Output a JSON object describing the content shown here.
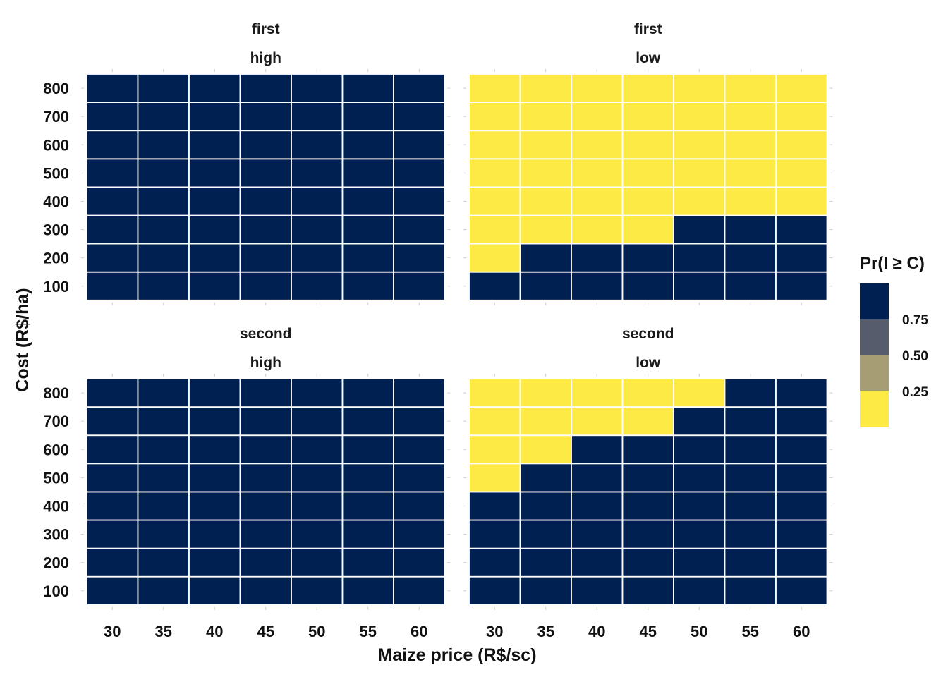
{
  "chart_data": {
    "type": "heatmap",
    "xlabel": "Maize price (R$/sc)",
    "ylabel": "Cost (R$/ha)",
    "x": [
      30,
      35,
      40,
      45,
      50,
      55,
      60
    ],
    "y": [
      100,
      200,
      300,
      400,
      500,
      600,
      700,
      800
    ],
    "legend": {
      "title": "Pr(I ≥ C)",
      "position": "right",
      "breaks": [
        "0.75",
        "0.50",
        "0.25"
      ],
      "colors": [
        "#002051",
        "#575C6D",
        "#A69D75",
        "#FDEA45"
      ]
    },
    "grid": true,
    "panels": [
      {
        "row_label": "first",
        "col_label": "high",
        "values": [
          [
            1,
            1,
            1,
            1,
            1,
            1,
            1
          ],
          [
            1,
            1,
            1,
            1,
            1,
            1,
            1
          ],
          [
            1,
            1,
            1,
            1,
            1,
            1,
            1
          ],
          [
            1,
            1,
            1,
            1,
            1,
            1,
            1
          ],
          [
            1,
            1,
            1,
            1,
            1,
            1,
            1
          ],
          [
            1,
            1,
            1,
            1,
            1,
            1,
            1
          ],
          [
            1,
            1,
            1,
            1,
            1,
            1,
            1
          ],
          [
            1,
            1,
            1,
            1,
            1,
            1,
            1
          ]
        ]
      },
      {
        "row_label": "first",
        "col_label": "low",
        "values": [
          [
            1,
            1,
            1,
            1,
            1,
            1,
            1
          ],
          [
            0,
            1,
            1,
            1,
            1,
            1,
            1
          ],
          [
            0,
            0,
            0,
            0,
            1,
            1,
            1
          ],
          [
            0,
            0,
            0,
            0,
            0,
            0,
            0
          ],
          [
            0,
            0,
            0,
            0,
            0,
            0,
            0
          ],
          [
            0,
            0,
            0,
            0,
            0,
            0,
            0
          ],
          [
            0,
            0,
            0,
            0,
            0,
            0,
            0
          ],
          [
            0,
            0,
            0,
            0,
            0,
            0,
            0
          ]
        ]
      },
      {
        "row_label": "second",
        "col_label": "high",
        "values": [
          [
            1,
            1,
            1,
            1,
            1,
            1,
            1
          ],
          [
            1,
            1,
            1,
            1,
            1,
            1,
            1
          ],
          [
            1,
            1,
            1,
            1,
            1,
            1,
            1
          ],
          [
            1,
            1,
            1,
            1,
            1,
            1,
            1
          ],
          [
            1,
            1,
            1,
            1,
            1,
            1,
            1
          ],
          [
            1,
            1,
            1,
            1,
            1,
            1,
            1
          ],
          [
            1,
            1,
            1,
            1,
            1,
            1,
            1
          ],
          [
            1,
            1,
            1,
            1,
            1,
            1,
            1
          ]
        ]
      },
      {
        "row_label": "second",
        "col_label": "low",
        "values": [
          [
            1,
            1,
            1,
            1,
            1,
            1,
            1
          ],
          [
            1,
            1,
            1,
            1,
            1,
            1,
            1
          ],
          [
            1,
            1,
            1,
            1,
            1,
            1,
            1
          ],
          [
            1,
            1,
            1,
            1,
            1,
            1,
            1
          ],
          [
            0,
            1,
            1,
            1,
            1,
            1,
            1
          ],
          [
            0,
            0,
            1,
            1,
            1,
            1,
            1
          ],
          [
            0,
            0,
            0,
            0,
            1,
            1,
            1
          ],
          [
            0,
            0,
            0,
            0,
            0,
            1,
            1
          ]
        ]
      }
    ]
  }
}
